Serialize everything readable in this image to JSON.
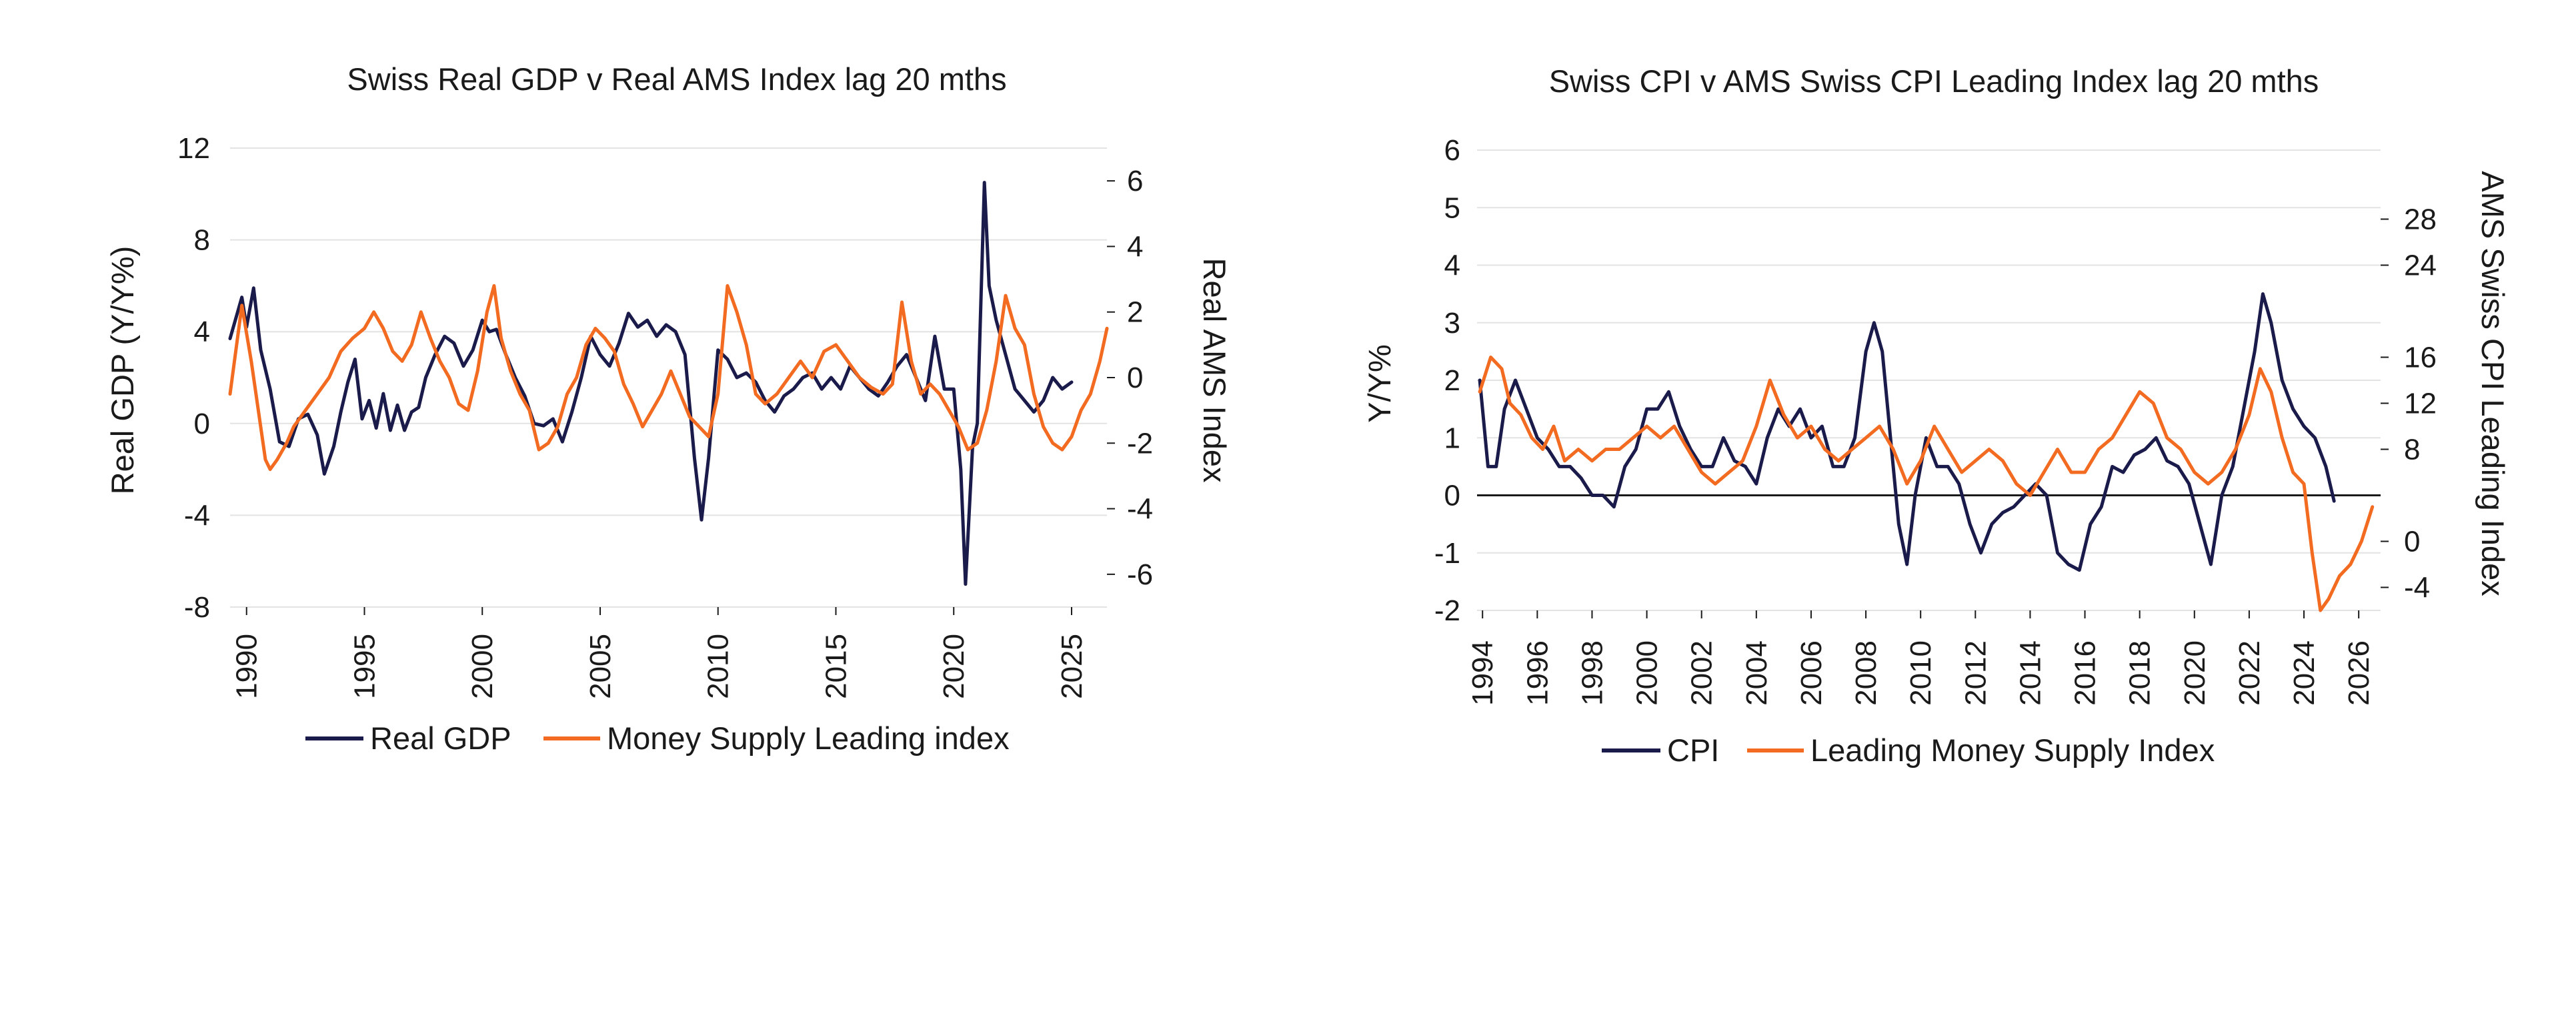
{
  "chart_data": [
    {
      "type": "line",
      "title": "Swiss Real GDP v Real AMS Index lag 20 mths",
      "ylabel": "Real GDP (Y/Y%)",
      "y2label": "Real AMS Index",
      "ylim": [
        -8,
        12
      ],
      "y2lim": [
        -7,
        7
      ],
      "xlim": [
        1989.3,
        2026.5
      ],
      "yticks": [
        "12",
        "8",
        "4",
        "0",
        "-4",
        "-8"
      ],
      "y2ticks": [
        "6",
        "4",
        "2",
        "0",
        "-2",
        "-4",
        "-6"
      ],
      "xticks": [
        "1990",
        "1995",
        "2000",
        "2005",
        "2010",
        "2015",
        "2020",
        "2025"
      ],
      "grid": true,
      "legend_position": "bottom",
      "series": [
        {
          "name": "Real GDP",
          "color": "#1b1b4b",
          "axis": "left",
          "x": [
            1989.3,
            1989.8,
            1990.0,
            1990.3,
            1990.6,
            1991.0,
            1991.4,
            1991.8,
            1992.2,
            1992.6,
            1993.0,
            1993.3,
            1993.7,
            1994.0,
            1994.3,
            1994.6,
            1994.9,
            1995.2,
            1995.5,
            1995.8,
            1996.1,
            1996.4,
            1996.7,
            1997.0,
            1997.3,
            1997.6,
            1998.0,
            1998.4,
            1998.8,
            1999.2,
            1999.6,
            2000.0,
            2000.3,
            2000.6,
            2001.0,
            2001.4,
            2001.8,
            2002.2,
            2002.6,
            2003.0,
            2003.4,
            2003.8,
            2004.2,
            2004.6,
            2005.0,
            2005.4,
            2005.8,
            2006.2,
            2006.6,
            2007.0,
            2007.4,
            2007.8,
            2008.2,
            2008.6,
            2009.0,
            2009.3,
            2009.6,
            2010.0,
            2010.4,
            2010.8,
            2011.2,
            2011.6,
            2012.0,
            2012.4,
            2012.8,
            2013.2,
            2013.6,
            2014.0,
            2014.4,
            2014.8,
            2015.2,
            2015.6,
            2016.0,
            2016.4,
            2016.8,
            2017.2,
            2017.6,
            2018.0,
            2018.4,
            2018.8,
            2019.2,
            2019.6,
            2020.0,
            2020.3,
            2020.5,
            2020.8,
            2021.0,
            2021.3,
            2021.5,
            2021.8,
            2022.2,
            2022.6,
            2023.0,
            2023.4,
            2023.8,
            2024.2,
            2024.6,
            2025.0
          ],
          "values": [
            3.7,
            5.5,
            4.2,
            5.9,
            3.2,
            1.5,
            -0.8,
            -1.0,
            0.2,
            0.4,
            -0.5,
            -2.2,
            -1.0,
            0.5,
            1.8,
            2.8,
            0.2,
            1.0,
            -0.2,
            1.3,
            -0.3,
            0.8,
            -0.3,
            0.5,
            0.7,
            2.0,
            3.0,
            3.8,
            3.5,
            2.5,
            3.2,
            4.5,
            4.0,
            4.1,
            3.0,
            2.0,
            1.2,
            0.0,
            -0.1,
            0.2,
            -0.8,
            0.5,
            2.0,
            3.8,
            3.0,
            2.5,
            3.5,
            4.8,
            4.2,
            4.5,
            3.8,
            4.3,
            4.0,
            3.0,
            -1.5,
            -4.2,
            -1.5,
            3.2,
            2.8,
            2.0,
            2.2,
            1.8,
            1.0,
            0.5,
            1.2,
            1.5,
            2.0,
            2.2,
            1.5,
            2.0,
            1.5,
            2.5,
            2.0,
            1.5,
            1.2,
            1.8,
            2.5,
            3.0,
            2.0,
            1.0,
            3.8,
            1.5,
            1.5,
            -2.0,
            -7.0,
            -1.0,
            0.0,
            10.5,
            6.0,
            4.5,
            3.0,
            1.5,
            1.0,
            0.5,
            1.0,
            2.0,
            1.5,
            1.8
          ]
        },
        {
          "name": "Money Supply Leading index",
          "color": "#f26b21",
          "axis": "right",
          "x": [
            1989.3,
            1989.8,
            1990.2,
            1990.5,
            1990.8,
            1991.0,
            1991.3,
            1991.7,
            1992.0,
            1992.5,
            1993.0,
            1993.5,
            1994.0,
            1994.5,
            1995.0,
            1995.4,
            1995.8,
            1996.2,
            1996.6,
            1997.0,
            1997.4,
            1997.8,
            1998.2,
            1998.6,
            1999.0,
            1999.4,
            1999.8,
            2000.2,
            2000.5,
            2000.8,
            2001.2,
            2001.6,
            2002.0,
            2002.4,
            2002.8,
            2003.2,
            2003.6,
            2004.0,
            2004.4,
            2004.8,
            2005.2,
            2005.6,
            2006.0,
            2006.4,
            2006.8,
            2007.2,
            2007.6,
            2008.0,
            2008.4,
            2008.8,
            2009.2,
            2009.6,
            2010.0,
            2010.4,
            2010.8,
            2011.2,
            2011.6,
            2012.0,
            2012.5,
            2013.0,
            2013.5,
            2014.0,
            2014.5,
            2015.0,
            2015.5,
            2016.0,
            2016.5,
            2017.0,
            2017.4,
            2017.8,
            2018.2,
            2018.6,
            2019.0,
            2019.4,
            2019.8,
            2020.2,
            2020.6,
            2021.0,
            2021.4,
            2021.8,
            2022.2,
            2022.6,
            2023.0,
            2023.4,
            2023.8,
            2024.2,
            2024.6,
            2025.0,
            2025.4,
            2025.8,
            2026.2,
            2026.5
          ],
          "values": [
            -0.5,
            2.2,
            0.5,
            -1.0,
            -2.5,
            -2.8,
            -2.5,
            -2.0,
            -1.5,
            -1.0,
            -0.5,
            0.0,
            0.8,
            1.2,
            1.5,
            2.0,
            1.5,
            0.8,
            0.5,
            1.0,
            2.0,
            1.2,
            0.5,
            0.0,
            -0.8,
            -1.0,
            0.2,
            2.0,
            2.8,
            1.2,
            0.2,
            -0.5,
            -1.0,
            -2.2,
            -2.0,
            -1.5,
            -0.5,
            0.0,
            1.0,
            1.5,
            1.2,
            0.8,
            -0.2,
            -0.8,
            -1.5,
            -1.0,
            -0.5,
            0.2,
            -0.5,
            -1.2,
            -1.5,
            -1.8,
            -0.5,
            2.8,
            2.0,
            1.0,
            -0.5,
            -0.8,
            -0.5,
            0.0,
            0.5,
            0.0,
            0.8,
            1.0,
            0.5,
            0.0,
            -0.3,
            -0.5,
            -0.2,
            2.3,
            0.5,
            -0.5,
            -0.2,
            -0.5,
            -1.0,
            -1.5,
            -2.2,
            -2.0,
            -1.0,
            0.5,
            2.5,
            1.5,
            1.0,
            -0.5,
            -1.5,
            -2.0,
            -2.2,
            -1.8,
            -1.0,
            -0.5,
            0.5,
            1.5
          ]
        }
      ]
    },
    {
      "type": "line",
      "title": "Swiss CPI v AMS Swiss CPI Leading Index lag 20 mths",
      "ylabel": "Y/Y%",
      "y2label": "AMS Swiss CPI Leading Index",
      "ylim": [
        -2,
        6
      ],
      "y2lim": [
        -6,
        34
      ],
      "xlim": [
        1993.8,
        2026.8
      ],
      "yticks": [
        "6",
        "5",
        "4",
        "3",
        "2",
        "1",
        "0",
        "-1",
        "-2"
      ],
      "y2ticks": [
        "28",
        "24",
        "16",
        "12",
        "8",
        "0",
        "-4"
      ],
      "xticks": [
        "1994",
        "1996",
        "1998",
        "2000",
        "2002",
        "2004",
        "2006",
        "2008",
        "2010",
        "2012",
        "2014",
        "2016",
        "2018",
        "2020",
        "2022",
        "2024",
        "2026"
      ],
      "grid": true,
      "legend_position": "bottom",
      "series": [
        {
          "name": "CPI",
          "color": "#1b1b4b",
          "axis": "left",
          "x": [
            1993.9,
            1994.2,
            1994.5,
            1994.8,
            1995.2,
            1995.6,
            1996.0,
            1996.4,
            1996.8,
            1997.2,
            1997.6,
            1998.0,
            1998.4,
            1998.8,
            1999.2,
            1999.6,
            2000.0,
            2000.4,
            2000.8,
            2001.2,
            2001.6,
            2002.0,
            2002.4,
            2002.8,
            2003.2,
            2003.6,
            2004.0,
            2004.4,
            2004.8,
            2005.2,
            2005.6,
            2006.0,
            2006.4,
            2006.8,
            2007.2,
            2007.6,
            2008.0,
            2008.3,
            2008.6,
            2008.9,
            2009.2,
            2009.5,
            2009.8,
            2010.2,
            2010.6,
            2011.0,
            2011.4,
            2011.8,
            2012.2,
            2012.6,
            2013.0,
            2013.4,
            2013.8,
            2014.2,
            2014.6,
            2015.0,
            2015.4,
            2015.8,
            2016.2,
            2016.6,
            2017.0,
            2017.4,
            2017.8,
            2018.2,
            2018.6,
            2019.0,
            2019.4,
            2019.8,
            2020.2,
            2020.6,
            2021.0,
            2021.4,
            2021.8,
            2022.2,
            2022.5,
            2022.8,
            2023.2,
            2023.6,
            2024.0,
            2024.4,
            2024.8,
            2025.1
          ],
          "values": [
            2.0,
            0.5,
            0.5,
            1.5,
            2.0,
            1.5,
            1.0,
            0.8,
            0.5,
            0.5,
            0.3,
            0.0,
            0.0,
            -0.2,
            0.5,
            0.8,
            1.5,
            1.5,
            1.8,
            1.2,
            0.8,
            0.5,
            0.5,
            1.0,
            0.6,
            0.5,
            0.2,
            1.0,
            1.5,
            1.2,
            1.5,
            1.0,
            1.2,
            0.5,
            0.5,
            1.0,
            2.5,
            3.0,
            2.5,
            1.0,
            -0.5,
            -1.2,
            0.0,
            1.0,
            0.5,
            0.5,
            0.2,
            -0.5,
            -1.0,
            -0.5,
            -0.3,
            -0.2,
            0.0,
            0.2,
            0.0,
            -1.0,
            -1.2,
            -1.3,
            -0.5,
            -0.2,
            0.5,
            0.4,
            0.7,
            0.8,
            1.0,
            0.6,
            0.5,
            0.2,
            -0.5,
            -1.2,
            0.0,
            0.5,
            1.5,
            2.5,
            3.5,
            3.0,
            2.0,
            1.5,
            1.2,
            1.0,
            0.5,
            -0.1
          ]
        },
        {
          "name": "Leading Money Supply Index",
          "color": "#f26b21",
          "axis": "right",
          "x": [
            1993.9,
            1994.3,
            1994.7,
            1995.0,
            1995.4,
            1995.8,
            1996.2,
            1996.6,
            1997.0,
            1997.5,
            1998.0,
            1998.5,
            1999.0,
            1999.5,
            2000.0,
            2000.5,
            2001.0,
            2001.5,
            2002.0,
            2002.5,
            2003.0,
            2003.5,
            2004.0,
            2004.5,
            2005.0,
            2005.5,
            2006.0,
            2006.5,
            2007.0,
            2007.5,
            2008.0,
            2008.5,
            2009.0,
            2009.5,
            2010.0,
            2010.5,
            2011.0,
            2011.5,
            2012.0,
            2012.5,
            2013.0,
            2013.5,
            2014.0,
            2014.5,
            2015.0,
            2015.5,
            2016.0,
            2016.5,
            2017.0,
            2017.5,
            2018.0,
            2018.5,
            2019.0,
            2019.5,
            2020.0,
            2020.5,
            2021.0,
            2021.5,
            2022.0,
            2022.4,
            2022.8,
            2023.2,
            2023.6,
            2024.0,
            2024.3,
            2024.6,
            2024.9,
            2025.3,
            2025.7,
            2026.1,
            2026.5
          ],
          "values": [
            13,
            16,
            15,
            12,
            11,
            9,
            8,
            10,
            7,
            8,
            7,
            8,
            8,
            9,
            10,
            9,
            10,
            8,
            6,
            5,
            6,
            7,
            10,
            14,
            11,
            9,
            10,
            8,
            7,
            8,
            9,
            10,
            8,
            5,
            7,
            10,
            8,
            6,
            7,
            8,
            7,
            5,
            4,
            6,
            8,
            6,
            6,
            8,
            9,
            11,
            13,
            12,
            9,
            8,
            6,
            5,
            6,
            8,
            11,
            15,
            13,
            9,
            6,
            5,
            -1,
            -6,
            -5,
            -3,
            -2,
            0,
            3
          ]
        }
      ]
    }
  ],
  "legend1": {
    "gdp": "Real GDP",
    "ams": "Money Supply Leading index"
  },
  "legend2": {
    "cpi": "CPI",
    "lead": "Leading Money Supply Index"
  }
}
